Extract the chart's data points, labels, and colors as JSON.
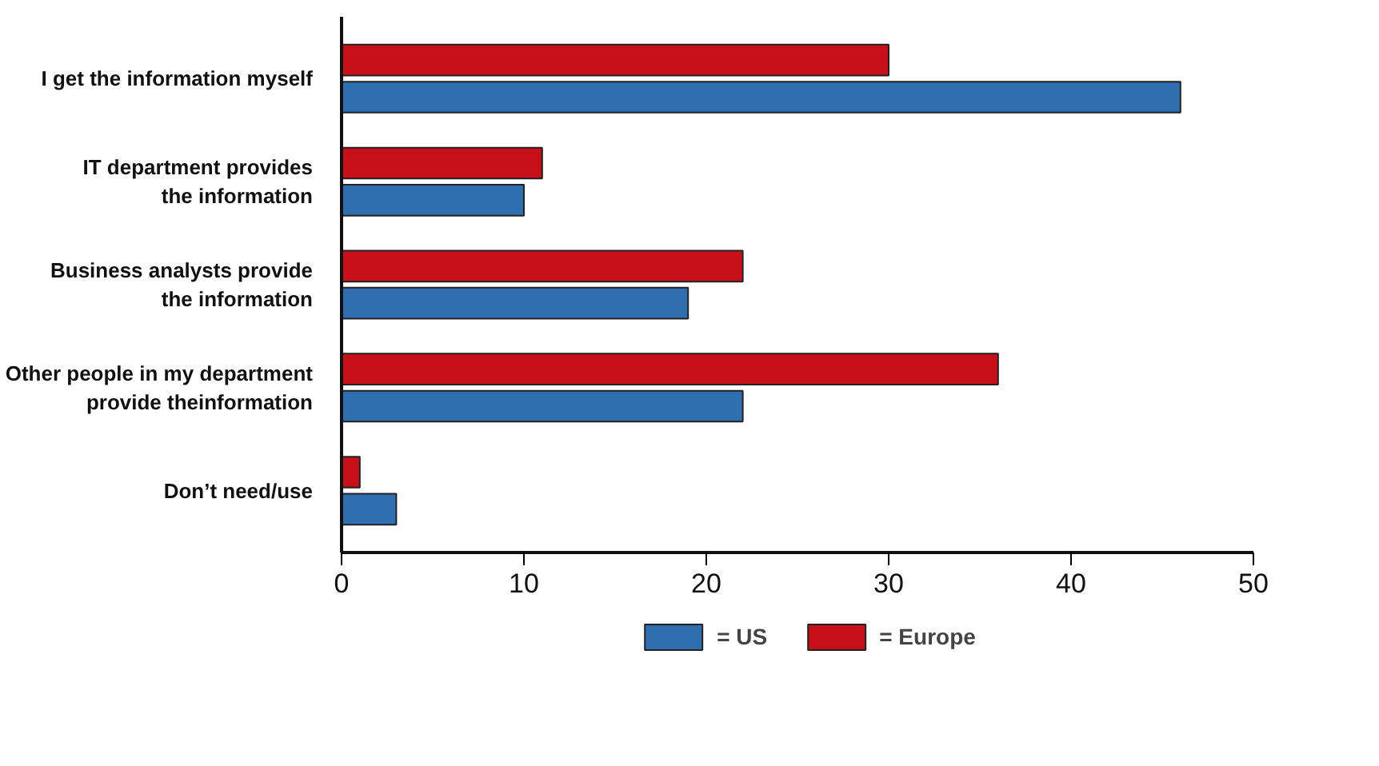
{
  "chart_data": {
    "type": "bar",
    "orientation": "horizontal",
    "categories": [
      "I get the information myself",
      "IT department provides\nthe information",
      "Business analysts provide\nthe information",
      "Other people in my department\nprovide theinformation",
      "Don’t need/use"
    ],
    "series": [
      {
        "name": "= Europe",
        "color": "#c8101a",
        "values": [
          30,
          11,
          22,
          36,
          1
        ]
      },
      {
        "name": "= US",
        "color": "#2f6fb0",
        "values": [
          46,
          10,
          19,
          22,
          3
        ]
      }
    ],
    "xlim": [
      0,
      50
    ],
    "xticks": [
      0,
      10,
      20,
      30,
      40,
      50
    ],
    "legend": "bottom"
  }
}
